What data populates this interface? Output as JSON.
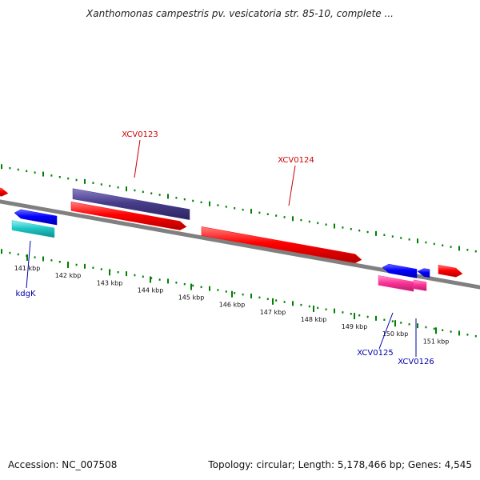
{
  "title": "Xanthomonas campestris pv. vesicatoria str. 85-10, complete ...",
  "accession_text": "Accession: NC_007508",
  "summary_text": "Topology: circular; Length: 5,178,466 bp; Genes: 4,545",
  "colors": {
    "backbone": "#808080",
    "tick": "#008000",
    "forward_cds": "#ff0000",
    "forward_gene": "#483d8b",
    "reverse_cds": "#0000ff",
    "reverse_gene_cyan": "#20c8c8",
    "reverse_gene_pink": "#ff3399",
    "label_forward": "#cc0000",
    "label_reverse": "#0000aa"
  },
  "kbp_labels": [
    "141 kbp",
    "142 kbp",
    "143 kbp",
    "144 kbp",
    "145 kbp",
    "146 kbp",
    "147 kbp",
    "148 kbp",
    "149 kbp",
    "150 kbp",
    "151 kbp"
  ],
  "features": [
    {
      "name": "XCV0123",
      "strand": "+",
      "type": "gene",
      "color_key": "forward_gene"
    },
    {
      "name": "XCV0123",
      "strand": "+",
      "type": "CDS",
      "color_key": "forward_cds"
    },
    {
      "name": "XCV0124",
      "strand": "+",
      "type": "CDS",
      "color_key": "forward_cds"
    },
    {
      "name": "kdgK",
      "strand": "-",
      "type": "CDS",
      "color_key": "reverse_cds"
    },
    {
      "name": "kdgK",
      "strand": "-",
      "type": "gene",
      "color_key": "reverse_gene_cyan"
    },
    {
      "name": "XCV0125",
      "strand": "-",
      "type": "CDS",
      "color_key": "reverse_cds"
    },
    {
      "name": "XCV0125",
      "strand": "-",
      "type": "gene",
      "color_key": "reverse_gene_pink"
    },
    {
      "name": "XCV0126",
      "strand": "-",
      "type": "CDS",
      "color_key": "reverse_cds"
    },
    {
      "name": "XCV0126",
      "strand": "-",
      "type": "gene",
      "color_key": "reverse_gene_pink"
    }
  ],
  "callouts": [
    {
      "text": "XCV0123",
      "strand": "+"
    },
    {
      "text": "XCV0124",
      "strand": "+"
    },
    {
      "text": "kdgK",
      "strand": "-"
    },
    {
      "text": "XCV0125",
      "strand": "-"
    },
    {
      "text": "XCV0126",
      "strand": "-"
    }
  ]
}
